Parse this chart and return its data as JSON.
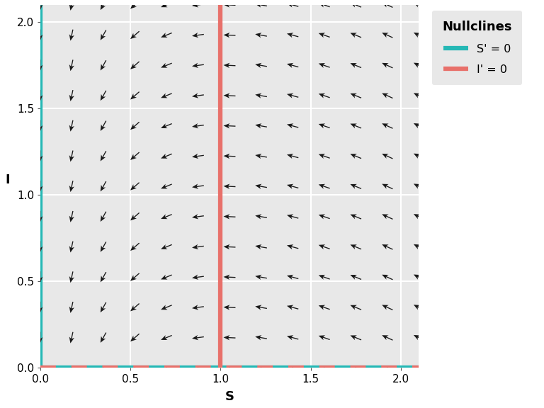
{
  "beta": 1.0,
  "k": 1.0,
  "S_range": [
    -0.05,
    2.15
  ],
  "I_range": [
    -0.05,
    2.15
  ],
  "S_lim": [
    0.0,
    2.1
  ],
  "I_lim": [
    0.0,
    2.1
  ],
  "x_ticks": [
    0.0,
    0.5,
    1.0,
    1.5,
    2.0
  ],
  "y_ticks": [
    0.0,
    0.5,
    1.0,
    1.5,
    2.0
  ],
  "xlabel": "S",
  "ylabel": "I",
  "nullcline_S_color": "#26b8b5",
  "nullcline_I_color": "#e8706a",
  "nullcline_S_label": "S' = 0",
  "nullcline_I_label": "I' = 0",
  "legend_title": "Nullclines",
  "background_color": "#e8e8e8",
  "grid_color": "#ffffff",
  "arrow_color": "#1a1a1a",
  "n_grid": 13,
  "nullcline_linewidth": 4.5,
  "figsize": [
    7.68,
    5.76
  ],
  "dpi": 100
}
